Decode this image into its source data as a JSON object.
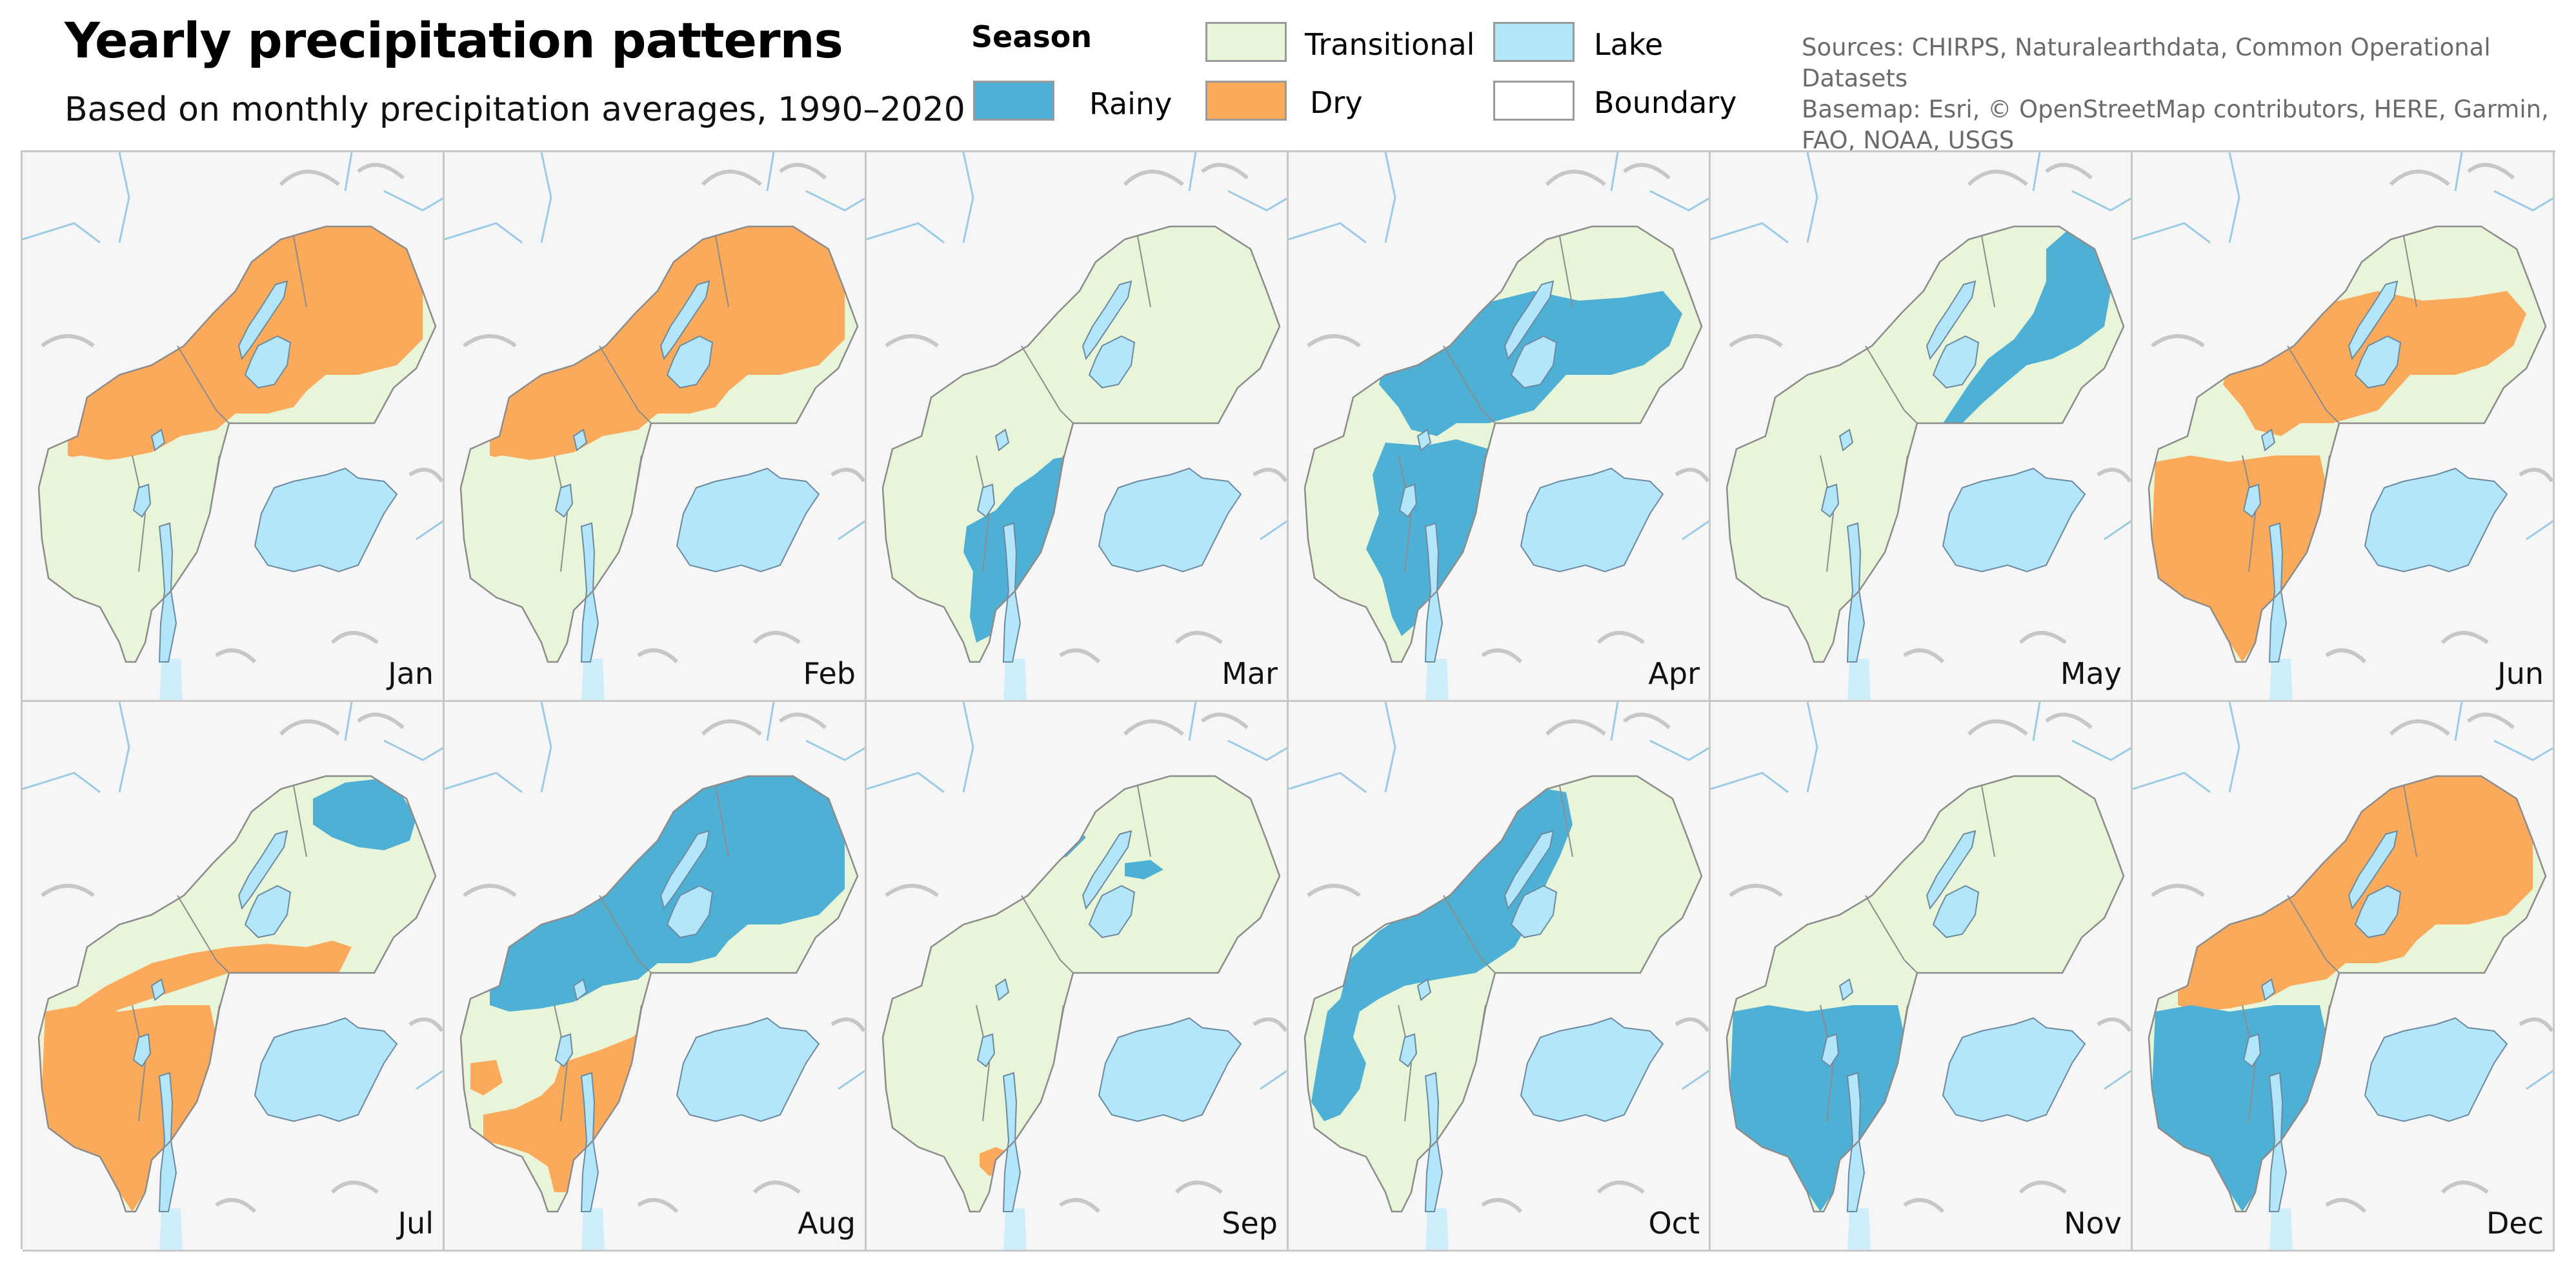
{
  "title": "Yearly precipitation patterns",
  "subtitle": "Based on monthly precipitation averages, 1990–2020",
  "legend": {
    "heading": "Season",
    "items": [
      {
        "key": "rainy",
        "label": "Rainy",
        "color": "#4fb0d6"
      },
      {
        "key": "transitional",
        "label": "Transitional",
        "color": "#e8f5d8"
      },
      {
        "key": "dry",
        "label": "Dry",
        "color": "#fbaa5c"
      },
      {
        "key": "lake",
        "label": "Lake",
        "color": "#b3e6fa"
      },
      {
        "key": "boundary",
        "label": "Boundary",
        "color": "#ffffff"
      }
    ]
  },
  "sources": [
    "Sources: CHIRPS, Naturalearthdata, Common Operational Datasets",
    "Basemap: Esri, © OpenStreetMap contributors, HERE, Garmin,",
    "FAO, NOAA, USGS"
  ],
  "colors": {
    "rainy": "#4fb0d6",
    "transitional": "#e8f5d8",
    "dry": "#fbaa5c",
    "lake": "#b3e6fa",
    "river": "#9ccbe6",
    "border": "#8c8c8c",
    "terrain": "#f6f6f6"
  },
  "months": [
    {
      "label": "Jan",
      "regions": [
        {
          "season": "dry",
          "zone": "north"
        },
        {
          "season": "transitional",
          "zone": "southwest"
        }
      ]
    },
    {
      "label": "Feb",
      "regions": [
        {
          "season": "dry",
          "zone": "north"
        },
        {
          "season": "transitional",
          "zone": "southwest"
        }
      ]
    },
    {
      "label": "Mar",
      "regions": [
        {
          "season": "rainy",
          "zone": "central-south"
        }
      ]
    },
    {
      "label": "Apr",
      "regions": [
        {
          "season": "rainy",
          "zone": "center"
        },
        {
          "season": "rainy",
          "zone": "south-center"
        }
      ]
    },
    {
      "label": "May",
      "regions": [
        {
          "season": "rainy",
          "zone": "northeast"
        }
      ]
    },
    {
      "label": "Jun",
      "regions": [
        {
          "season": "dry",
          "zone": "southwest"
        },
        {
          "season": "dry",
          "zone": "center"
        }
      ]
    },
    {
      "label": "Jul",
      "regions": [
        {
          "season": "dry",
          "zone": "southwest"
        },
        {
          "season": "dry",
          "zone": "center-belt"
        },
        {
          "season": "rainy",
          "zone": "northeast-corner"
        }
      ]
    },
    {
      "label": "Aug",
      "regions": [
        {
          "season": "rainy",
          "zone": "north"
        },
        {
          "season": "rainy",
          "zone": "west-spots"
        },
        {
          "season": "dry",
          "zone": "south"
        }
      ]
    },
    {
      "label": "Sep",
      "regions": [
        {
          "season": "rainy",
          "zone": "north-spots"
        },
        {
          "season": "dry",
          "zone": "south-tip"
        }
      ]
    },
    {
      "label": "Oct",
      "regions": [
        {
          "season": "rainy",
          "zone": "west"
        }
      ]
    },
    {
      "label": "Nov",
      "regions": [
        {
          "season": "rainy",
          "zone": "southwest"
        }
      ]
    },
    {
      "label": "Dec",
      "regions": [
        {
          "season": "dry",
          "zone": "north"
        },
        {
          "season": "rainy",
          "zone": "southwest"
        }
      ]
    }
  ]
}
